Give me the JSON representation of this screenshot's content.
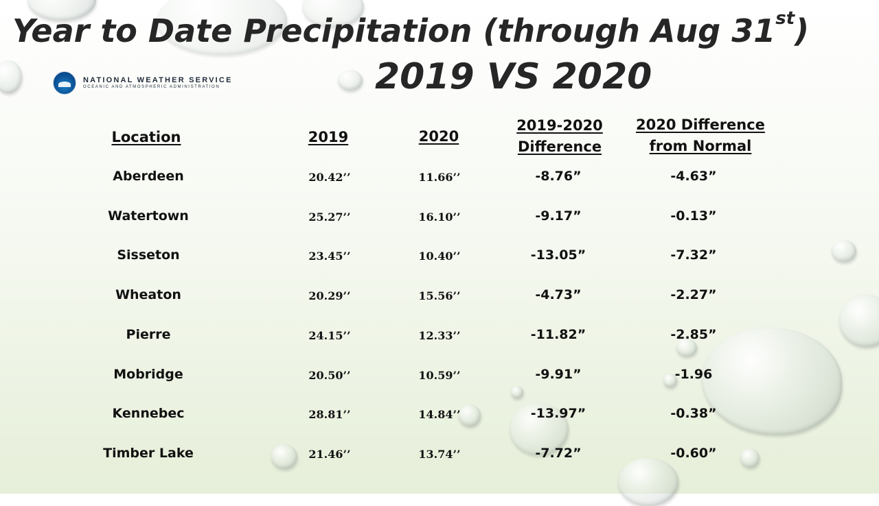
{
  "title": {
    "main": "Year to Date Precipitation (through Aug 31",
    "sup": "st",
    "close": ")"
  },
  "subtitle": "2019 VS 2020",
  "logo": {
    "line1": "NATIONAL WEATHER SERVICE",
    "line2": "OCEANIC AND ATMOSPHERIC ADMINISTRATION",
    "icon": "noaa-logo-icon"
  },
  "table": {
    "headers": {
      "location": "Location",
      "y2019": "2019",
      "y2020": "2020",
      "diff_line1": "2019-2020",
      "diff_line2": "Difference",
      "normal_line1": "2020 Difference",
      "normal_line2": "from Normal"
    },
    "rows": [
      {
        "location": "Aberdeen",
        "y2019": "20.42’’",
        "y2020": "11.66’’",
        "diff": "-8.76”",
        "normal": "-4.63”"
      },
      {
        "location": "Watertown",
        "y2019": "25.27’’",
        "y2020": "16.10’’",
        "diff": "-9.17”",
        "normal": "-0.13”"
      },
      {
        "location": "Sisseton",
        "y2019": "23.45’’",
        "y2020": "10.40’’",
        "diff": "-13.05”",
        "normal": "-7.32”"
      },
      {
        "location": "Wheaton",
        "y2019": "20.29’’",
        "y2020": "15.56’’",
        "diff": "-4.73”",
        "normal": "-2.27”"
      },
      {
        "location": "Pierre",
        "y2019": "24.15’’",
        "y2020": "12.33’’",
        "diff": "-11.82”",
        "normal": "-2.85”"
      },
      {
        "location": "Mobridge",
        "y2019": "20.50’’",
        "y2020": "10.59’’",
        "diff": "-9.91”",
        "normal": "-1.96"
      },
      {
        "location": "Kennebec",
        "y2019": "28.81’’",
        "y2020": "14.84’’",
        "diff": "-13.97”",
        "normal": "-0.38”"
      },
      {
        "location": "Timber Lake",
        "y2019": "21.46’’",
        "y2020": "13.74’’",
        "diff": "-7.72”",
        "normal": "-0.60”"
      }
    ]
  }
}
